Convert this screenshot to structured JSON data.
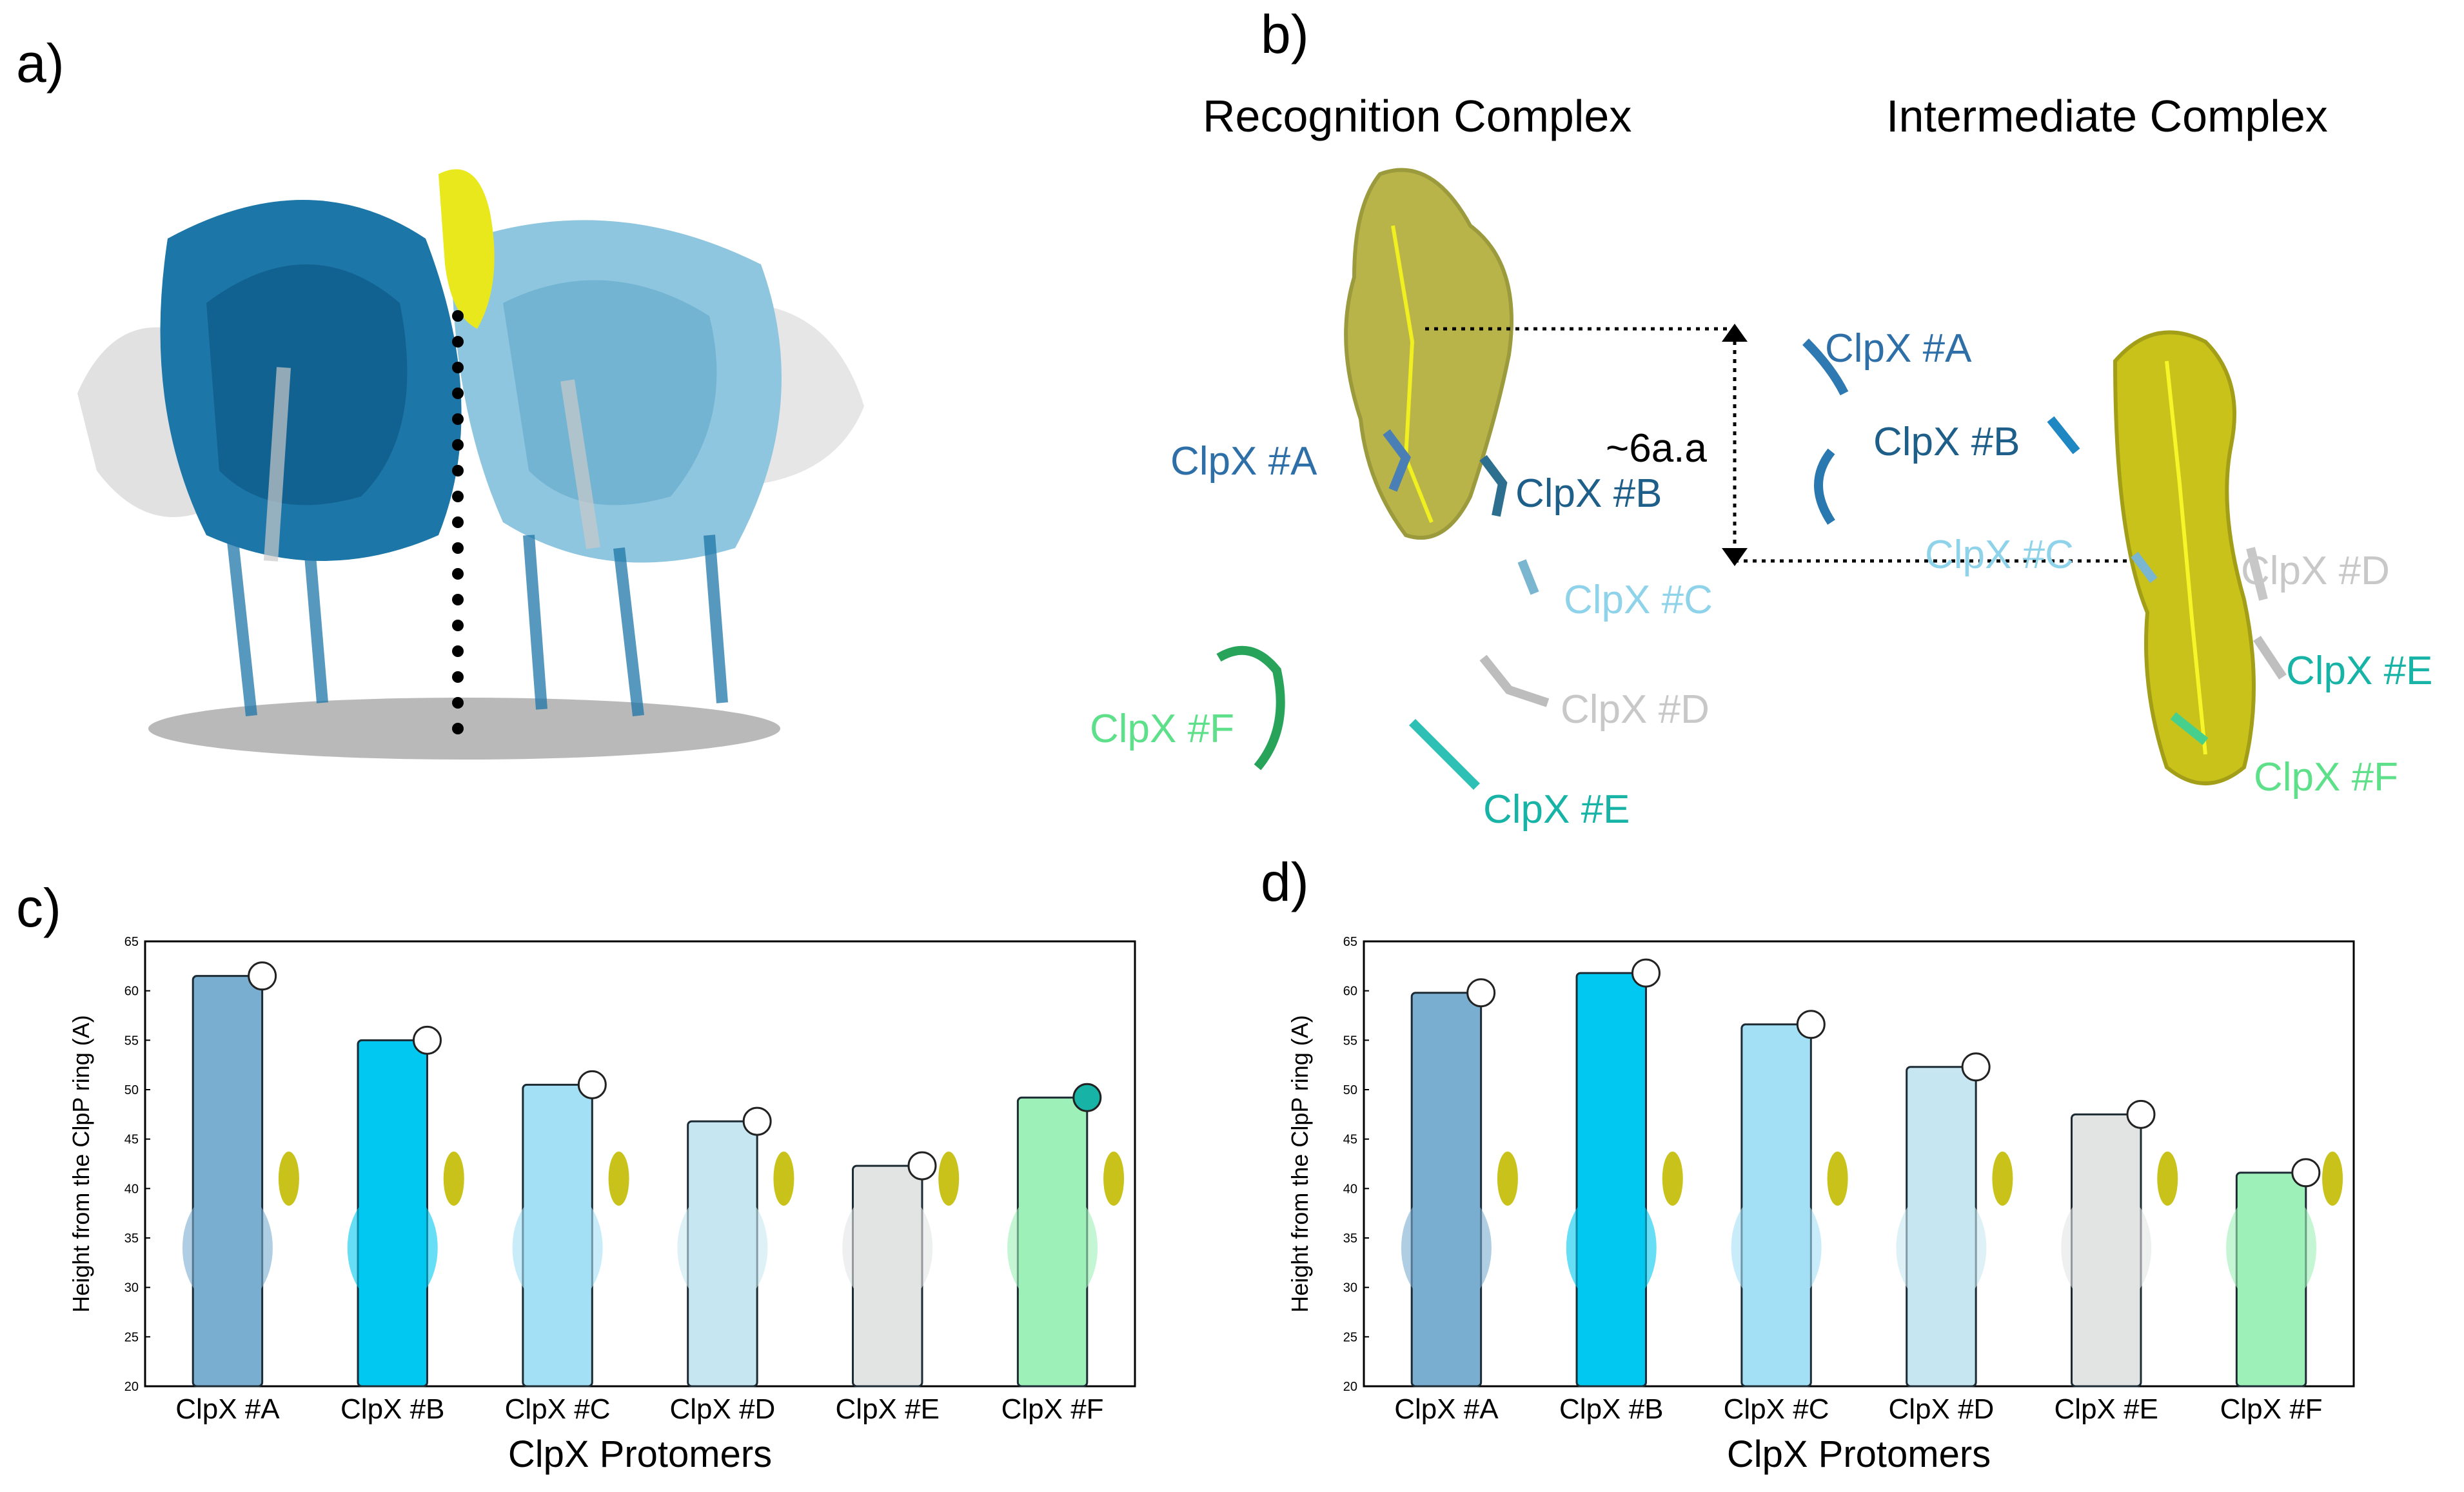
{
  "panels": {
    "a": {
      "label": "a)"
    },
    "b": {
      "label": "b)",
      "recognition_title": "Recognition Complex",
      "intermediate_title": "Intermediate Complex",
      "distance_label": "~6a.a",
      "recognition_labels": [
        "ClpX #A",
        "ClpX #B",
        "ClpX #C",
        "ClpX #D",
        "ClpX #E",
        "ClpX #F"
      ],
      "intermediate_labels": [
        "ClpX #A",
        "ClpX #B",
        "ClpX #C",
        "ClpX #D",
        "ClpX #E",
        "ClpX #F"
      ]
    },
    "c": {
      "label": "c)"
    },
    "d": {
      "label": "d)"
    }
  },
  "colors": {
    "clpx_a": "#2e6fa8",
    "clpx_b": "#1e5f8a",
    "clpx_c": "#8fd3ea",
    "clpx_d": "#c8c8c8",
    "clpx_e": "#17b3a6",
    "clpx_f": "#5ee08a",
    "substrate": "#d6d61e"
  },
  "chart_data": [
    {
      "type": "bar",
      "panel": "c",
      "categories": [
        "ClpX #A",
        "ClpX #B",
        "ClpX #C",
        "ClpX #D",
        "ClpX #E",
        "ClpX #F"
      ],
      "values": [
        61.5,
        55,
        50.5,
        46.8,
        42.3,
        49.2
      ],
      "bar_colors": [
        "#7aaed0",
        "#00c8f0",
        "#a3e0f5",
        "#c6e7f2",
        "#e2e4e4",
        "#9cf0b8"
      ],
      "marker_fills": [
        "#ffffff",
        "#ffffff",
        "#ffffff",
        "#ffffff",
        "#ffffff",
        "#17b3a6"
      ],
      "xlabel": "ClpX Protomers",
      "ylabel": "Height from the ClpP ring (A)",
      "ylim": [
        20,
        65
      ],
      "yticks": [
        20,
        25,
        30,
        35,
        40,
        45,
        50,
        55,
        60,
        65
      ],
      "grid": false
    },
    {
      "type": "bar",
      "panel": "d",
      "categories": [
        "ClpX #A",
        "ClpX #B",
        "ClpX #C",
        "ClpX #D",
        "ClpX #E",
        "ClpX #F"
      ],
      "values": [
        59.8,
        61.8,
        56.6,
        52.3,
        47.5,
        41.6
      ],
      "bar_colors": [
        "#7aaed0",
        "#00c8f0",
        "#a3e0f5",
        "#c6e7f2",
        "#e2e4e4",
        "#9cf0b8"
      ],
      "marker_fills": [
        "#ffffff",
        "#ffffff",
        "#ffffff",
        "#ffffff",
        "#ffffff",
        "#ffffff"
      ],
      "xlabel": "ClpX Protomers",
      "ylabel": "Height from the ClpP ring (A)",
      "ylim": [
        20,
        65
      ],
      "yticks": [
        20,
        25,
        30,
        35,
        40,
        45,
        50,
        55,
        60,
        65
      ],
      "grid": false
    }
  ]
}
